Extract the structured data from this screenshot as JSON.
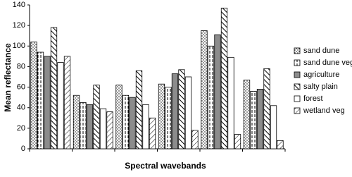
{
  "chart_data": {
    "type": "bar",
    "y_label": "Mean reflectance",
    "x_label": "Spectral wavebands",
    "categories": [
      null,
      null,
      null,
      null,
      null,
      null
    ],
    "series": [
      {
        "name": "sand dune",
        "color": "#ffffff",
        "pattern": "dots",
        "values": [
          104,
          52,
          62,
          63,
          115,
          67
        ]
      },
      {
        "name": "sand dune veg",
        "color": "#ffffff",
        "pattern": "vdash",
        "values": [
          94,
          45,
          52,
          60,
          100,
          56
        ]
      },
      {
        "name": "agriculture",
        "color": "#8c8c8c",
        "pattern": "solid",
        "values": [
          90,
          43,
          50,
          73,
          111,
          58
        ]
      },
      {
        "name": "salty plain",
        "color": "#ffffff",
        "pattern": "diag",
        "values": [
          118,
          62,
          76,
          77,
          137,
          78
        ]
      },
      {
        "name": "forest",
        "color": "#ffffff",
        "pattern": "solid",
        "values": [
          84,
          39,
          43,
          70,
          89,
          42
        ]
      },
      {
        "name": "wetland veg",
        "color": "#ffffff",
        "pattern": "backdiag",
        "values": [
          90,
          36,
          30,
          18,
          14,
          8
        ]
      }
    ],
    "ylim": [
      0,
      140
    ],
    "yticks": [
      0,
      20,
      40,
      60,
      80,
      100,
      120,
      140
    ],
    "legend": "right"
  }
}
